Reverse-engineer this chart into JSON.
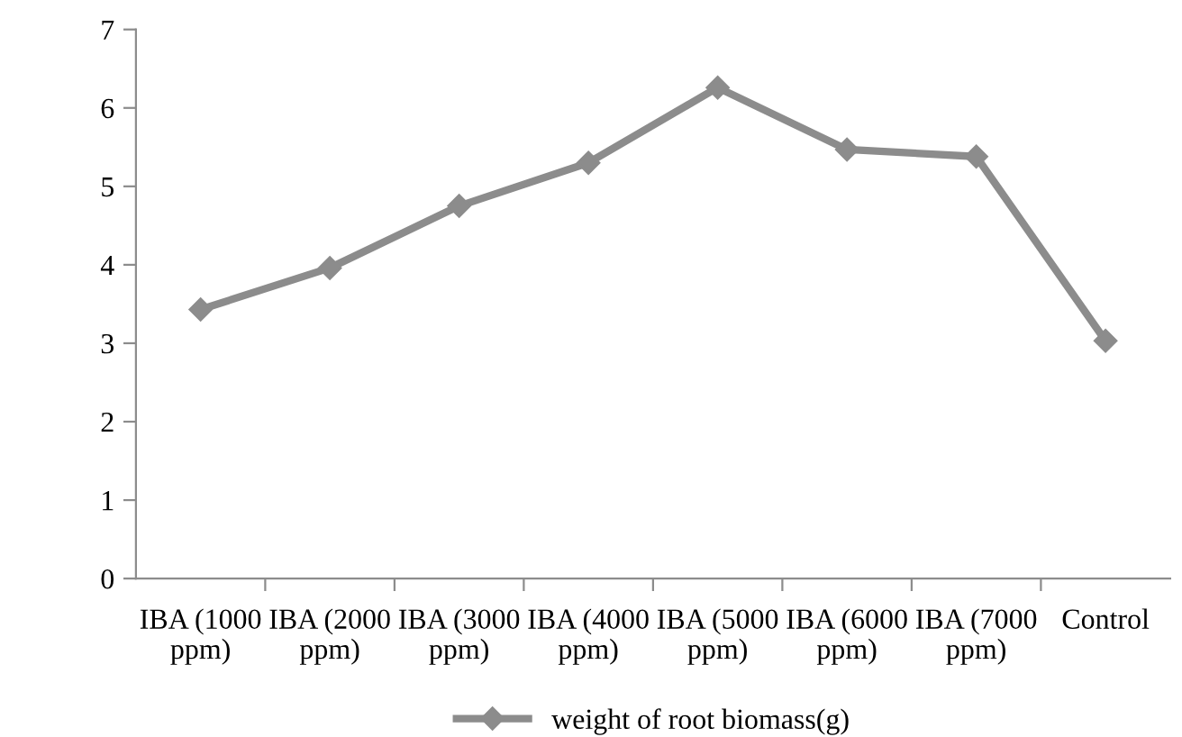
{
  "chart_data": {
    "type": "line",
    "categories": [
      "IBA (1000\nppm)",
      "IBA (2000\nppm)",
      "IBA (3000\nppm)",
      "IBA (4000\nppm)",
      "IBA (5000\nppm)",
      "IBA (6000\nppm)",
      "IBA (7000\nppm)",
      "Control"
    ],
    "series": [
      {
        "name": "weight of root biomass(g)",
        "color": "#8c8c8c",
        "values": [
          3.43,
          3.96,
          4.75,
          5.3,
          6.26,
          5.47,
          5.38,
          3.03
        ]
      }
    ],
    "ylim": [
      0,
      7
    ],
    "yticks": [
      0,
      1,
      2,
      3,
      4,
      5,
      6,
      7
    ],
    "marker": "diamond",
    "line_style": "solid",
    "legend": "bottom",
    "grid": false
  }
}
